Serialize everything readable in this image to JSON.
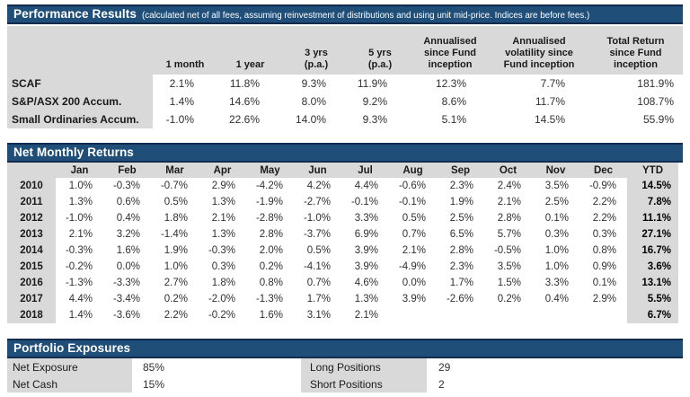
{
  "performance": {
    "title": "Performance Results",
    "subtitle": "(calculated net of all fees, assuming reinvestment of distributions and using unit mid-price. Indices are before fees.)",
    "columns": [
      "1 month",
      "1 year",
      "3 yrs\n(p.a.)",
      "5 yrs\n(p.a.)",
      "Annualised\nsince Fund\ninception",
      "Annualised\nvolatility since\nFund inception",
      "Total Return\nsince Fund\ninception"
    ],
    "rows": [
      {
        "label": "SCAF",
        "values": [
          "2.1%",
          "11.8%",
          "9.3%",
          "11.9%",
          "12.3%",
          "7.7%",
          "181.9%"
        ]
      },
      {
        "label": "S&P/ASX 200 Accum.",
        "values": [
          "1.4%",
          "14.6%",
          "8.0%",
          "9.2%",
          "8.6%",
          "11.7%",
          "108.7%"
        ]
      },
      {
        "label": "Small Ordinaries Accum.",
        "values": [
          "-1.0%",
          "22.6%",
          "14.0%",
          "9.3%",
          "5.1%",
          "14.5%",
          "55.9%"
        ]
      }
    ]
  },
  "monthly": {
    "title": "Net Monthly Returns",
    "columns": [
      "Jan",
      "Feb",
      "Mar",
      "Apr",
      "May",
      "Jun",
      "Jul",
      "Aug",
      "Sep",
      "Oct",
      "Nov",
      "Dec",
      "YTD"
    ],
    "rows": [
      {
        "year": "2010",
        "months": [
          "1.0%",
          "-0.3%",
          "-0.7%",
          "2.9%",
          "-4.2%",
          "4.2%",
          "4.4%",
          "-0.6%",
          "2.3%",
          "2.4%",
          "3.5%",
          "-0.9%"
        ],
        "ytd": "14.5%"
      },
      {
        "year": "2011",
        "months": [
          "1.3%",
          "0.6%",
          "0.5%",
          "1.3%",
          "-1.9%",
          "-2.7%",
          "-0.1%",
          "-0.1%",
          "1.9%",
          "2.1%",
          "2.5%",
          "2.2%"
        ],
        "ytd": "7.8%"
      },
      {
        "year": "2012",
        "months": [
          "-1.0%",
          "0.4%",
          "1.8%",
          "2.1%",
          "-2.8%",
          "-1.0%",
          "3.3%",
          "0.5%",
          "2.5%",
          "2.8%",
          "0.1%",
          "2.2%"
        ],
        "ytd": "11.1%"
      },
      {
        "year": "2013",
        "months": [
          "2.1%",
          "3.2%",
          "-1.4%",
          "1.3%",
          "2.8%",
          "-3.7%",
          "6.9%",
          "0.7%",
          "6.5%",
          "5.7%",
          "0.3%",
          "0.3%"
        ],
        "ytd": "27.1%"
      },
      {
        "year": "2014",
        "months": [
          "-0.3%",
          "1.6%",
          "1.9%",
          "-0.3%",
          "2.0%",
          "0.5%",
          "3.9%",
          "2.1%",
          "2.8%",
          "-0.5%",
          "1.0%",
          "0.8%"
        ],
        "ytd": "16.7%"
      },
      {
        "year": "2015",
        "months": [
          "-0.2%",
          "0.0%",
          "1.0%",
          "0.3%",
          "0.2%",
          "-4.1%",
          "3.9%",
          "-4.9%",
          "2.3%",
          "3.5%",
          "1.0%",
          "0.9%"
        ],
        "ytd": "3.6%"
      },
      {
        "year": "2016",
        "months": [
          "-1.3%",
          "-3.3%",
          "2.7%",
          "1.8%",
          "0.8%",
          "0.7%",
          "4.6%",
          "0.0%",
          "1.7%",
          "1.5%",
          "3.3%",
          "0.1%"
        ],
        "ytd": "13.1%"
      },
      {
        "year": "2017",
        "months": [
          "4.4%",
          "-3.4%",
          "0.2%",
          "-2.0%",
          "-1.3%",
          "1.7%",
          "1.3%",
          "3.9%",
          "-2.6%",
          "0.2%",
          "0.4%",
          "2.9%"
        ],
        "ytd": "5.5%"
      },
      {
        "year": "2018",
        "months": [
          "1.4%",
          "-3.6%",
          "2.2%",
          "-0.2%",
          "1.6%",
          "3.1%",
          "2.1%",
          "",
          "",
          "",
          "",
          ""
        ],
        "ytd": "6.7%"
      }
    ]
  },
  "portfolio": {
    "title": "Portfolio Exposures",
    "left": [
      {
        "label": "Net Exposure",
        "value": "85%"
      },
      {
        "label": "Net Cash",
        "value": "15%"
      }
    ],
    "right": [
      {
        "label": "Long Positions",
        "value": "29"
      },
      {
        "label": "Short Positions",
        "value": "2"
      }
    ]
  },
  "colors": {
    "bar_navy": "#1f4e79",
    "bar_border": "#122c4f",
    "cell_gray": "#d9d9d9"
  }
}
